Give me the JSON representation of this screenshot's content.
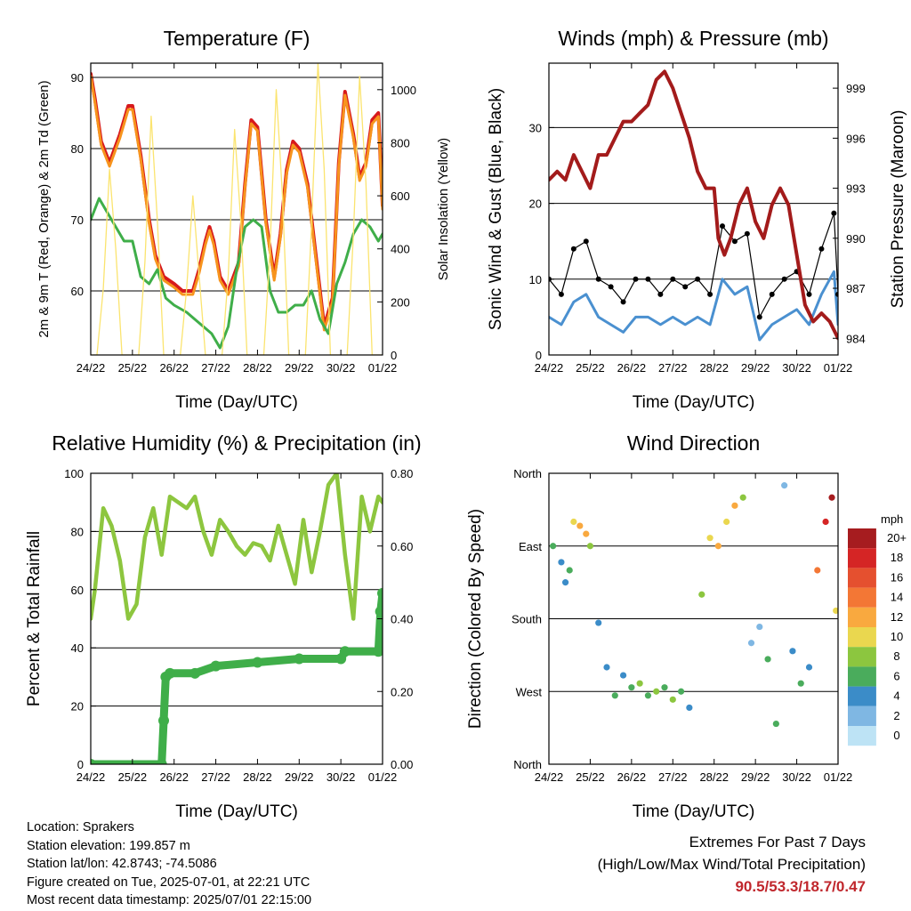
{
  "chart_data": [
    {
      "type": "line",
      "title": "Temperature (F)",
      "xlabel": "Time (Day/UTC)",
      "ylabel": "2m & 9m T (Red, Orange) & 2m Td (Green)",
      "ylabel_right": "Solar Insolation (Yellow)",
      "x_ticks": [
        "24/22",
        "25/22",
        "26/22",
        "27/22",
        "28/22",
        "29/22",
        "30/22",
        "01/22"
      ],
      "ylim": [
        51,
        92
      ],
      "yticks": [
        60,
        70,
        80,
        90
      ],
      "ylim_right": [
        0,
        1100
      ],
      "yticks_right": [
        0,
        200,
        400,
        600,
        800,
        1000
      ],
      "grid": "horizontal",
      "series": [
        {
          "name": "2m T",
          "color": "#d7191c",
          "axis": "left",
          "x": [
            0,
            0.1,
            0.25,
            0.45,
            0.7,
            0.9,
            1.0,
            1.2,
            1.4,
            1.55,
            1.75,
            2.0,
            2.2,
            2.45,
            2.6,
            2.75,
            2.85,
            2.95,
            3.1,
            3.3,
            3.55,
            3.7,
            3.85,
            4.0,
            4.2,
            4.4,
            4.55,
            4.7,
            4.85,
            5.0,
            5.2,
            5.4,
            5.6,
            5.8,
            5.95,
            6.1,
            6.3,
            6.45,
            6.6,
            6.75,
            6.9,
            7.0
          ],
          "y": [
            90.5,
            87,
            81,
            78,
            82,
            86,
            86,
            79,
            70,
            65,
            62,
            61,
            60,
            60,
            63,
            67,
            69,
            67,
            62,
            60,
            64,
            75,
            84,
            83,
            70,
            62,
            68,
            77,
            81,
            80,
            75,
            65,
            55,
            59,
            78,
            88,
            82,
            76,
            78,
            84,
            85,
            72
          ]
        },
        {
          "name": "9m T",
          "color": "#f7941d",
          "axis": "left",
          "x": [
            0,
            0.1,
            0.25,
            0.45,
            0.7,
            0.9,
            1.0,
            1.2,
            1.4,
            1.55,
            1.75,
            2.0,
            2.2,
            2.45,
            2.6,
            2.75,
            2.85,
            2.95,
            3.1,
            3.3,
            3.55,
            3.7,
            3.85,
            4.0,
            4.2,
            4.4,
            4.55,
            4.7,
            4.85,
            5.0,
            5.2,
            5.4,
            5.6,
            5.8,
            5.95,
            6.1,
            6.3,
            6.45,
            6.6,
            6.75,
            6.9,
            7.0
          ],
          "y": [
            90.2,
            86.5,
            80.5,
            77.5,
            81.5,
            85.5,
            85.5,
            78.5,
            69.5,
            64.5,
            61.5,
            60.5,
            59.5,
            59.5,
            62.5,
            66.5,
            68.5,
            66.5,
            61.5,
            59.5,
            63.5,
            74.5,
            83.5,
            82.5,
            69.5,
            61.5,
            67.5,
            76.5,
            80.5,
            79.5,
            74.5,
            64.5,
            54.5,
            58.5,
            77.5,
            87.5,
            81.5,
            75.5,
            77.5,
            83.5,
            84.5,
            71.5
          ]
        },
        {
          "name": "2m Td",
          "color": "#3fae49",
          "axis": "left",
          "x": [
            0,
            0.2,
            0.4,
            0.6,
            0.8,
            1.0,
            1.2,
            1.4,
            1.6,
            1.8,
            2.0,
            2.3,
            2.5,
            2.7,
            2.9,
            3.1,
            3.3,
            3.5,
            3.7,
            3.9,
            4.1,
            4.3,
            4.5,
            4.7,
            4.9,
            5.1,
            5.3,
            5.5,
            5.7,
            5.9,
            6.1,
            6.3,
            6.5,
            6.7,
            6.9,
            7.0
          ],
          "y": [
            70,
            73,
            71,
            69,
            67,
            67,
            62,
            61,
            63,
            59,
            58,
            57,
            56,
            55,
            54,
            52,
            55,
            63,
            69,
            70,
            69,
            60,
            57,
            57,
            58,
            58,
            60,
            56,
            54,
            61,
            64,
            68,
            70,
            69,
            67,
            68
          ]
        },
        {
          "name": "Solar Insolation",
          "color": "#fbe46f",
          "axis": "right",
          "x": [
            0,
            0.15,
            0.3,
            0.45,
            0.6,
            0.75,
            1.0,
            1.15,
            1.3,
            1.45,
            1.6,
            1.75,
            2.0,
            2.15,
            2.3,
            2.45,
            2.6,
            2.75,
            3.0,
            3.15,
            3.3,
            3.45,
            3.6,
            3.75,
            4.0,
            4.15,
            4.3,
            4.45,
            4.6,
            4.75,
            5.0,
            5.15,
            5.3,
            5.45,
            5.6,
            5.75,
            6.0,
            6.15,
            6.3,
            6.45,
            6.6,
            6.75,
            7.0
          ],
          "y": [
            0,
            0,
            250,
            700,
            400,
            0,
            0,
            0,
            350,
            900,
            500,
            0,
            0,
            0,
            250,
            600,
            300,
            0,
            0,
            0,
            300,
            850,
            500,
            0,
            0,
            0,
            400,
            1000,
            600,
            0,
            0,
            0,
            500,
            1100,
            700,
            0,
            0,
            0,
            450,
            1050,
            650,
            0,
            0
          ]
        }
      ]
    },
    {
      "type": "line",
      "title": "Winds (mph) & Pressure (mb)",
      "xlabel": "Time (Day/UTC)",
      "ylabel": "Sonic Wind & Gust (Blue, Black)",
      "ylabel_right": "Station Pressure (Maroon)",
      "x_ticks": [
        "24/22",
        "25/22",
        "26/22",
        "27/22",
        "28/22",
        "29/22",
        "30/22",
        "01/22"
      ],
      "ylim": [
        0,
        38.5
      ],
      "yticks": [
        0,
        10,
        20,
        30
      ],
      "ylim_right": [
        983,
        1000.5
      ],
      "yticks_right": [
        984,
        987,
        990,
        993,
        996,
        999
      ],
      "grid": "horizontal",
      "series": [
        {
          "name": "Wind",
          "color": "#4a90d0",
          "axis": "left",
          "x": [
            0,
            0.3,
            0.6,
            0.9,
            1.2,
            1.5,
            1.8,
            2.1,
            2.4,
            2.7,
            3.0,
            3.3,
            3.6,
            3.9,
            4.2,
            4.5,
            4.8,
            5.1,
            5.4,
            5.7,
            6.0,
            6.3,
            6.6,
            6.9,
            7.0
          ],
          "y": [
            5,
            4,
            7,
            8,
            5,
            4,
            3,
            5,
            5,
            4,
            5,
            4,
            5,
            4,
            10,
            8,
            9,
            2,
            4,
            5,
            6,
            4,
            8,
            11,
            4
          ]
        },
        {
          "name": "Gust",
          "color": "#000000",
          "axis": "left",
          "x": [
            0,
            0.3,
            0.6,
            0.9,
            1.2,
            1.5,
            1.8,
            2.1,
            2.4,
            2.7,
            3.0,
            3.3,
            3.6,
            3.9,
            4.2,
            4.5,
            4.8,
            5.1,
            5.4,
            5.7,
            6.0,
            6.3,
            6.6,
            6.9,
            7.0
          ],
          "y": [
            10,
            8,
            14,
            15,
            10,
            9,
            7,
            10,
            10,
            8,
            10,
            9,
            10,
            8,
            17,
            15,
            16,
            5,
            8,
            10,
            11,
            8,
            14,
            18.7,
            8
          ]
        },
        {
          "name": "Station Pressure",
          "color": "#a31b1b",
          "axis": "right",
          "x": [
            0,
            0.2,
            0.4,
            0.6,
            0.8,
            1.0,
            1.2,
            1.4,
            1.6,
            1.8,
            2.0,
            2.2,
            2.4,
            2.6,
            2.8,
            3.0,
            3.2,
            3.4,
            3.6,
            3.8,
            4.0,
            4.1,
            4.25,
            4.4,
            4.6,
            4.8,
            5.0,
            5.2,
            5.4,
            5.6,
            5.8,
            6.0,
            6.2,
            6.4,
            6.6,
            6.8,
            7.0
          ],
          "y": [
            993.5,
            994,
            993.5,
            995,
            994,
            993,
            995,
            995,
            996,
            997,
            997,
            997.5,
            998,
            999.5,
            1000,
            999,
            997.5,
            996,
            994,
            993,
            993,
            990,
            989,
            990,
            992,
            993,
            991,
            990,
            992,
            993,
            992,
            989,
            986,
            985,
            985.5,
            985,
            984
          ]
        }
      ]
    },
    {
      "type": "line",
      "title": "Relative Humidity (%) & Precipitation (in)",
      "xlabel": "Time (Day/UTC)",
      "ylabel": "Percent & Total Rainfall",
      "x_ticks": [
        "24/22",
        "25/22",
        "26/22",
        "27/22",
        "28/22",
        "29/22",
        "30/22",
        "01/22"
      ],
      "ylim": [
        0,
        100
      ],
      "yticks": [
        0,
        20,
        40,
        60,
        80,
        100
      ],
      "ylim_right": [
        0,
        0.8
      ],
      "yticks_right": [
        "0.00",
        "0.20",
        "0.40",
        "0.60",
        "0.80"
      ],
      "grid": "horizontal",
      "series": [
        {
          "name": "Relative Humidity",
          "color": "#8dc63f",
          "axis": "left",
          "x": [
            0,
            0.1,
            0.3,
            0.5,
            0.7,
            0.9,
            1.1,
            1.3,
            1.5,
            1.7,
            1.9,
            2.1,
            2.3,
            2.5,
            2.7,
            2.9,
            3.1,
            3.3,
            3.5,
            3.7,
            3.9,
            4.1,
            4.3,
            4.5,
            4.7,
            4.9,
            5.1,
            5.3,
            5.5,
            5.7,
            5.9,
            6.1,
            6.3,
            6.5,
            6.7,
            6.9,
            7.0
          ],
          "y": [
            50,
            60,
            88,
            82,
            70,
            50,
            55,
            78,
            88,
            72,
            92,
            90,
            88,
            92,
            80,
            72,
            84,
            80,
            75,
            72,
            76,
            75,
            70,
            82,
            72,
            62,
            84,
            66,
            80,
            96,
            100,
            72,
            50,
            92,
            80,
            92,
            90
          ]
        },
        {
          "name": "Total Rainfall",
          "color": "#3fae49",
          "axis": "right",
          "x": [
            0,
            1.7,
            1.75,
            1.8,
            1.9,
            2.5,
            3.0,
            4.0,
            5.0,
            6.0,
            6.1,
            6.9,
            6.95,
            7.0
          ],
          "y": [
            0,
            0,
            0.12,
            0.24,
            0.25,
            0.25,
            0.27,
            0.28,
            0.29,
            0.29,
            0.31,
            0.31,
            0.42,
            0.47
          ]
        }
      ]
    },
    {
      "type": "scatter",
      "title": "Wind Direction",
      "xlabel": "Time (Day/UTC)",
      "ylabel": "Direction (Colored By Speed)",
      "x_ticks": [
        "24/22",
        "25/22",
        "26/22",
        "27/22",
        "28/22",
        "29/22",
        "30/22",
        "01/22"
      ],
      "y_ticks": [
        "North",
        "West",
        "South",
        "East",
        "North"
      ],
      "ylim": [
        0,
        360
      ],
      "grid": "horizontal",
      "colorbar": {
        "title": "mph",
        "labels": [
          "20+",
          "18",
          "16",
          "14",
          "12",
          "10",
          "8",
          "6",
          "4",
          "2",
          "0"
        ],
        "colors": [
          "#a61c1f",
          "#d52525",
          "#e5502f",
          "#f37735",
          "#f9a93f",
          "#ead74f",
          "#8cc63f",
          "#4aac5c",
          "#3b8cc8",
          "#7fb7e3",
          "#bde3f5"
        ]
      },
      "points": [
        {
          "x": 0.1,
          "y": 270,
          "speed": 6
        },
        {
          "x": 0.3,
          "y": 250,
          "speed": 4
        },
        {
          "x": 0.4,
          "y": 225,
          "speed": 4
        },
        {
          "x": 0.5,
          "y": 240,
          "speed": 5
        },
        {
          "x": 0.6,
          "y": 300,
          "speed": 10
        },
        {
          "x": 0.75,
          "y": 295,
          "speed": 12
        },
        {
          "x": 0.9,
          "y": 285,
          "speed": 11
        },
        {
          "x": 1.0,
          "y": 270,
          "speed": 8
        },
        {
          "x": 1.2,
          "y": 175,
          "speed": 3
        },
        {
          "x": 1.4,
          "y": 120,
          "speed": 4
        },
        {
          "x": 1.6,
          "y": 85,
          "speed": 6
        },
        {
          "x": 1.8,
          "y": 110,
          "speed": 4
        },
        {
          "x": 2.0,
          "y": 95,
          "speed": 5
        },
        {
          "x": 2.2,
          "y": 100,
          "speed": 7
        },
        {
          "x": 2.4,
          "y": 85,
          "speed": 6
        },
        {
          "x": 2.6,
          "y": 90,
          "speed": 8
        },
        {
          "x": 2.8,
          "y": 95,
          "speed": 6
        },
        {
          "x": 3.0,
          "y": 80,
          "speed": 7
        },
        {
          "x": 3.2,
          "y": 90,
          "speed": 5
        },
        {
          "x": 3.4,
          "y": 70,
          "speed": 4
        },
        {
          "x": 3.7,
          "y": 210,
          "speed": 7
        },
        {
          "x": 3.9,
          "y": 280,
          "speed": 10
        },
        {
          "x": 4.1,
          "y": 270,
          "speed": 12
        },
        {
          "x": 4.3,
          "y": 300,
          "speed": 9
        },
        {
          "x": 4.5,
          "y": 320,
          "speed": 11
        },
        {
          "x": 4.7,
          "y": 330,
          "speed": 8
        },
        {
          "x": 4.9,
          "y": 150,
          "speed": 2
        },
        {
          "x": 5.1,
          "y": 170,
          "speed": 2
        },
        {
          "x": 5.3,
          "y": 130,
          "speed": 5
        },
        {
          "x": 5.5,
          "y": 50,
          "speed": 6
        },
        {
          "x": 5.7,
          "y": 345,
          "speed": 2
        },
        {
          "x": 5.9,
          "y": 140,
          "speed": 4
        },
        {
          "x": 6.1,
          "y": 100,
          "speed": 5
        },
        {
          "x": 6.3,
          "y": 120,
          "speed": 4
        },
        {
          "x": 6.5,
          "y": 240,
          "speed": 14
        },
        {
          "x": 6.7,
          "y": 300,
          "speed": 18
        },
        {
          "x": 6.85,
          "y": 330,
          "speed": 20
        },
        {
          "x": 6.95,
          "y": 190,
          "speed": 9
        }
      ]
    }
  ],
  "info": {
    "location": "Location: Sprakers",
    "elevation": "Station elevation: 199.857 m",
    "latlon": "Station lat/lon: 42.8743; -74.5086",
    "created": "Figure created on Tue, 2025-07-01, at 22:21 UTC",
    "recent": "Most recent data timestamp: 2025/07/01 22:15:00"
  },
  "extremes": {
    "title": "Extremes For Past 7 Days",
    "subtitle": "(High/Low/Max Wind/Total Precipitation)",
    "values": "90.5/53.3/18.7/0.47"
  }
}
